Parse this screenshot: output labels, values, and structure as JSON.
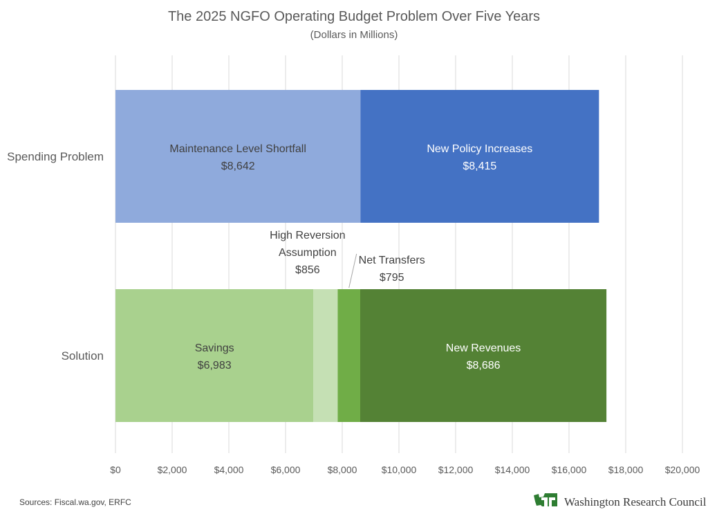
{
  "chart_data": {
    "type": "bar",
    "orientation": "horizontal",
    "stacked": true,
    "title": "The 2025 NGFO Operating Budget Problem Over Five Years",
    "subtitle": "(Dollars in Millions)",
    "xlim": [
      0,
      20000
    ],
    "xticks": [
      0,
      2000,
      4000,
      6000,
      8000,
      10000,
      12000,
      14000,
      16000,
      18000,
      20000
    ],
    "xtick_labels": [
      "$0",
      "$2,000",
      "$4,000",
      "$6,000",
      "$8,000",
      "$10,000",
      "$12,000",
      "$14,000",
      "$16,000",
      "$18,000",
      "$20,000"
    ],
    "grid": true,
    "categories": [
      "Spending Problem",
      "Solution"
    ],
    "bars": [
      {
        "category": "Spending Problem",
        "segments": [
          {
            "name": "Maintenance Level Shortfall",
            "value": 8642,
            "label": "$8,642",
            "color": "#8faadc",
            "text_color": "#404040",
            "label_position": "inside"
          },
          {
            "name": "New Policy Increases",
            "value": 8415,
            "label": "$8,415",
            "color": "#4472c4",
            "text_color": "#ffffff",
            "label_position": "inside"
          }
        ]
      },
      {
        "category": "Solution",
        "segments": [
          {
            "name": "Savings",
            "value": 6983,
            "label": "$6,983",
            "color": "#a9d18e",
            "text_color": "#404040",
            "label_position": "inside"
          },
          {
            "name": "High Reversion Assumption",
            "value": 856,
            "label": "$856",
            "color": "#c5e0b4",
            "text_color": "#404040",
            "label_position": "above"
          },
          {
            "name": "Net Transfers",
            "value": 795,
            "label": "$795",
            "color": "#70ad47",
            "text_color": "#404040",
            "label_position": "above-right"
          },
          {
            "name": "New Revenues",
            "value": 8686,
            "label": "$8,686",
            "color": "#548235",
            "text_color": "#ffffff",
            "label_position": "inside"
          }
        ]
      }
    ]
  },
  "footer": {
    "source": "Sources: Fiscal.wa.gov, ERFC",
    "brand": "Washington Research Council",
    "brand_color": "#2e7d32"
  }
}
